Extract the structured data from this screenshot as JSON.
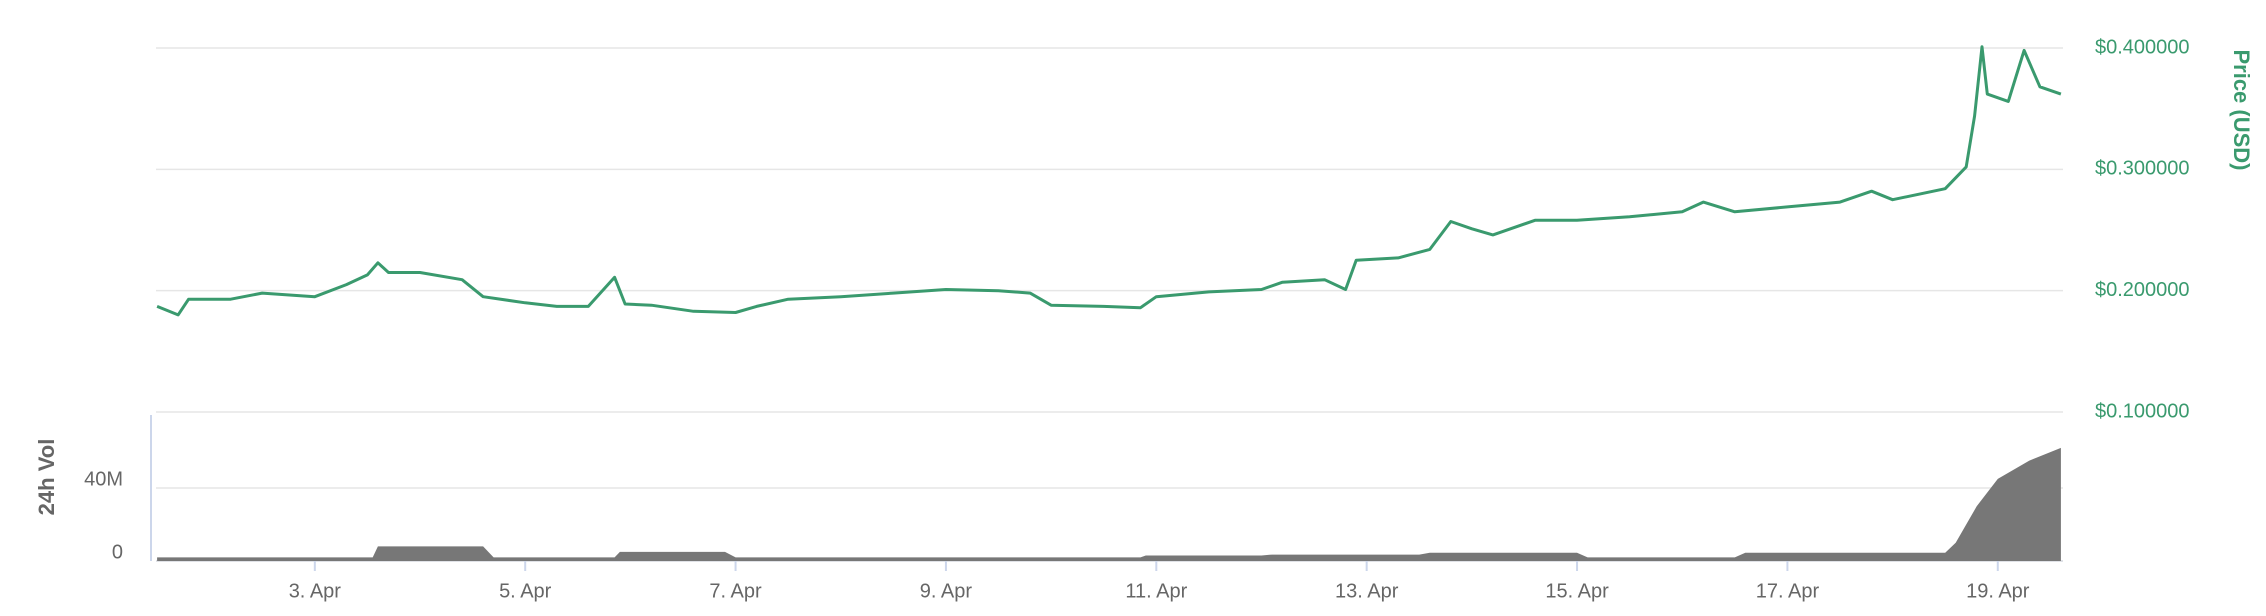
{
  "chart_data": [
    {
      "type": "line",
      "y_label": "Price (USD)",
      "x": [
        1.5,
        1.7,
        1.8,
        2.2,
        2.5,
        3.0,
        3.3,
        3.5,
        3.6,
        3.7,
        4.0,
        4.4,
        4.6,
        5.0,
        5.3,
        5.6,
        5.85,
        5.95,
        6.2,
        6.6,
        7.0,
        7.2,
        7.5,
        8.0,
        8.5,
        9.0,
        9.5,
        9.8,
        10.0,
        10.5,
        10.85,
        11.0,
        11.5,
        12.0,
        12.2,
        12.6,
        12.8,
        12.9,
        13.3,
        13.6,
        13.8,
        14.0,
        14.2,
        14.6,
        15.0,
        15.5,
        16.0,
        16.2,
        16.5,
        17.0,
        17.5,
        17.8,
        18.0,
        18.5,
        18.7,
        18.78,
        18.85,
        18.9,
        19.1,
        19.25,
        19.4,
        19.6
      ],
      "series": [
        {
          "name": "Price",
          "color": "#3a9a6e",
          "values": [
            0.187,
            0.18,
            0.193,
            0.193,
            0.198,
            0.195,
            0.205,
            0.213,
            0.223,
            0.215,
            0.215,
            0.209,
            0.195,
            0.19,
            0.187,
            0.187,
            0.211,
            0.189,
            0.188,
            0.183,
            0.182,
            0.187,
            0.193,
            0.195,
            0.198,
            0.201,
            0.2,
            0.198,
            0.188,
            0.187,
            0.186,
            0.195,
            0.199,
            0.201,
            0.207,
            0.209,
            0.201,
            0.225,
            0.227,
            0.234,
            0.257,
            0.251,
            0.246,
            0.258,
            0.258,
            0.261,
            0.265,
            0.273,
            0.265,
            0.269,
            0.273,
            0.282,
            0.275,
            0.284,
            0.302,
            0.344,
            0.401,
            0.362,
            0.356,
            0.398,
            0.368,
            0.362
          ]
        }
      ],
      "xlim": [
        1.49,
        19.62
      ],
      "ylim": [
        0.1,
        0.4
      ],
      "yticks": [
        {
          "value": 0.1,
          "label": "$0.100000"
        },
        {
          "value": 0.2,
          "label": "$0.200000"
        },
        {
          "value": 0.3,
          "label": "$0.300000"
        },
        {
          "value": 0.4,
          "label": "$0.400000"
        }
      ],
      "grid": true
    },
    {
      "type": "area",
      "y_label": "24h Vol",
      "x": [
        1.5,
        3.55,
        3.6,
        4.6,
        4.7,
        5.85,
        5.9,
        6.9,
        7.0,
        10.85,
        10.9,
        12.0,
        12.1,
        13.5,
        13.6,
        15.0,
        15.1,
        16.5,
        16.6,
        18.5,
        18.6,
        18.8,
        19.0,
        19.3,
        19.6
      ],
      "series": [
        {
          "name": "24h Vol",
          "color": "#777777",
          "values": [
            2000000,
            2000000,
            8000000,
            8000000,
            2000000,
            2000000,
            5000000,
            5000000,
            2000000,
            2000000,
            3000000,
            3000000,
            3500000,
            3500000,
            4500000,
            4500000,
            2000000,
            2000000,
            4500000,
            4500000,
            10000000,
            30000000,
            45000000,
            55000000,
            62000000
          ]
        }
      ],
      "xlim": [
        1.49,
        19.62
      ],
      "ylim": [
        0,
        80000000
      ],
      "yticks": [
        0,
        {
          "value": 40000000,
          "label": "40M"
        }
      ],
      "xticks": [
        {
          "value": 3,
          "label": "3. Apr"
        },
        {
          "value": 5,
          "label": "5. Apr"
        },
        {
          "value": 7,
          "label": "7. Apr"
        },
        {
          "value": 9,
          "label": "9. Apr"
        },
        {
          "value": 11,
          "label": "11. Apr"
        },
        {
          "value": 13,
          "label": "13. Apr"
        },
        {
          "value": 15,
          "label": "15. Apr"
        },
        {
          "value": 17,
          "label": "17. Apr"
        },
        {
          "value": 19,
          "label": "19. Apr"
        }
      ],
      "grid": true
    }
  ]
}
